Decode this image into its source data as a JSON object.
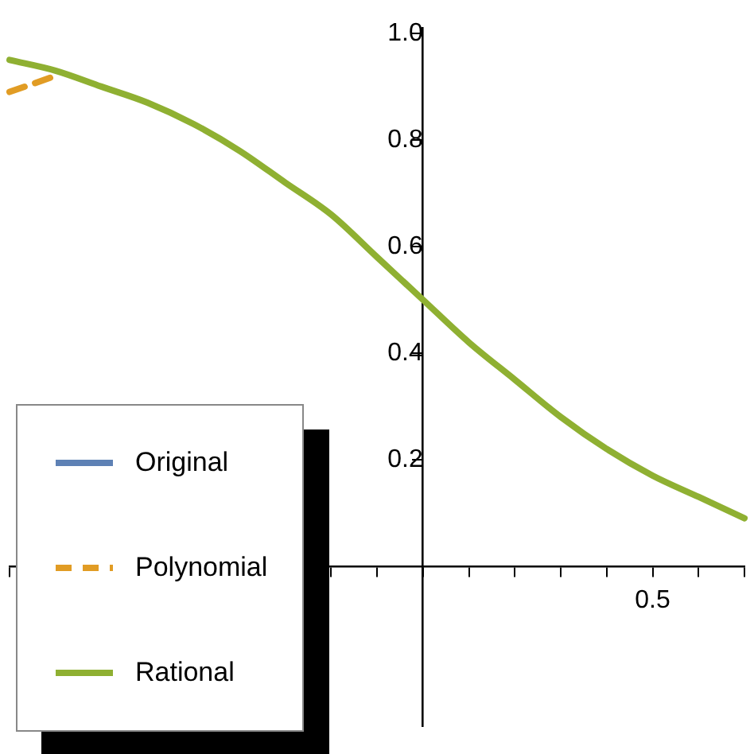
{
  "chart_data": {
    "type": "line",
    "categories": [
      null,
      null,
      null,
      null,
      null,
      null,
      null,
      null,
      null,
      null,
      null,
      null,
      null,
      null,
      "0.5",
      null,
      null
    ],
    "ylim": [
      -0.3,
      1.01
    ],
    "yticks": [
      0.2,
      0.4,
      0.6,
      0.8,
      {
        "value": 1.0,
        "label": "1.0"
      }
    ],
    "grid": false,
    "legend": "bottom left",
    "marker": "none",
    "series": [
      {
        "name": "Original",
        "color": "#5e81b5",
        "line_style": "solid",
        "values": [
          null,
          null,
          null,
          null,
          null,
          null,
          null,
          null,
          null,
          null,
          null,
          null,
          null,
          null,
          null,
          null,
          null
        ]
      },
      {
        "name": "Polynomial",
        "color": "#e19c24",
        "line_style": "dashed",
        "values": [
          0.89,
          0.92,
          null,
          null,
          null,
          null,
          null,
          null,
          null,
          null,
          null,
          null,
          null,
          null,
          null,
          null,
          null
        ]
      },
      {
        "name": "Rational",
        "color": "#8fb032",
        "line_style": "solid",
        "values": [
          0.95,
          0.93,
          0.9,
          0.87,
          0.83,
          0.78,
          0.72,
          0.66,
          0.58,
          0.5,
          0.42,
          0.35,
          0.28,
          0.22,
          0.17,
          0.13,
          0.09
        ]
      }
    ]
  }
}
